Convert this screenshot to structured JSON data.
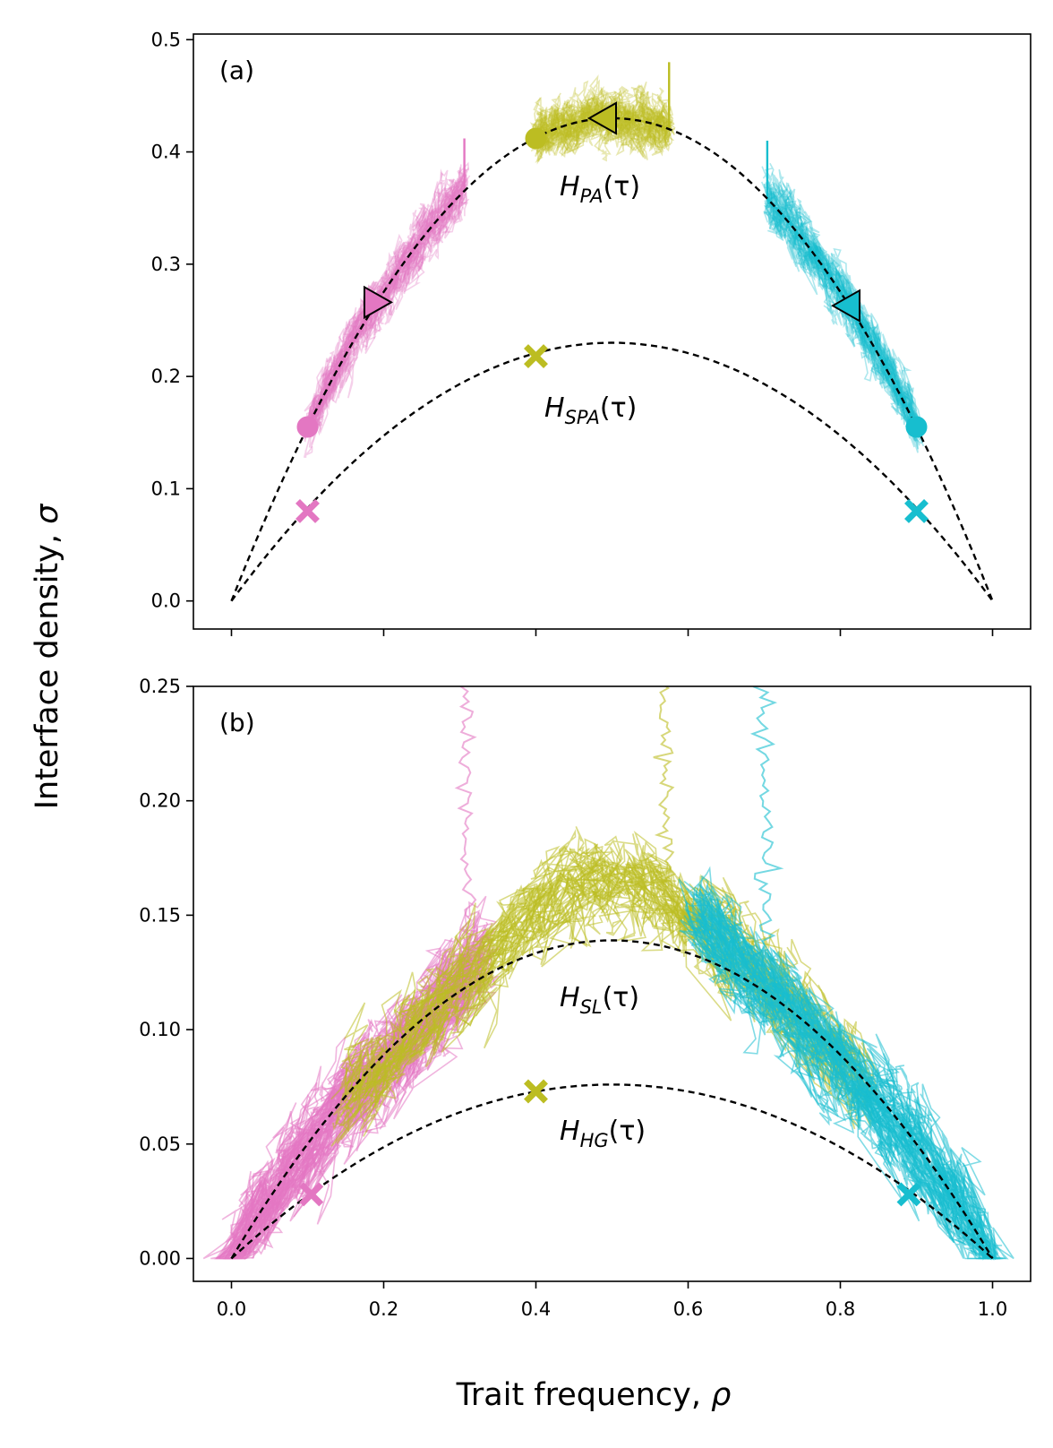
{
  "colors": {
    "pink": "#e377c2",
    "olive": "#bcbd22",
    "cyan": "#17becf",
    "black": "#000000"
  },
  "figure": {
    "xlabel_text": "Trait frequency, ",
    "xlabel_symbol": "ρ",
    "ylabel_text": "Interface density, ",
    "ylabel_symbol": "σ",
    "x_ticks": [
      "0.0",
      "0.2",
      "0.4",
      "0.6",
      "0.8",
      "1.0"
    ]
  },
  "chart_data": [
    {
      "type": "line",
      "panel_label": "(a)",
      "xlim": [
        -0.05,
        1.05
      ],
      "ylim": [
        -0.025,
        0.505
      ],
      "y_ticks": [
        0.0,
        0.1,
        0.2,
        0.3,
        0.4,
        0.5
      ],
      "y_tick_labels": [
        "0.0",
        "0.1",
        "0.2",
        "0.3",
        "0.4",
        "0.5"
      ],
      "theory_curves": [
        {
          "main": "H",
          "sub": "PA",
          "arg": "(τ)",
          "peak": 0.43,
          "style": "dashed"
        },
        {
          "main": "H",
          "sub": "SPA",
          "arg": "(τ)",
          "peak": 0.23,
          "style": "dashed"
        }
      ],
      "series": [
        {
          "name": "pink",
          "color_key": "pink",
          "rho_start": 0.1,
          "rho_end": 0.306,
          "spike_at": 0.306,
          "spike_top": 0.412
        },
        {
          "name": "olive",
          "color_key": "olive",
          "rho_start": 0.4,
          "rho_end": 0.575,
          "spike_at": 0.575,
          "spike_top": 0.48
        },
        {
          "name": "cyan",
          "color_key": "cyan",
          "rho_start": 0.9,
          "rho_end": 0.704,
          "spike_at": 0.704,
          "spike_top": 0.41
        }
      ],
      "markers": [
        {
          "shape": "circle",
          "color_key": "pink",
          "x": 0.1,
          "y": 0.155
        },
        {
          "shape": "circle",
          "color_key": "olive",
          "x": 0.4,
          "y": 0.412
        },
        {
          "shape": "circle",
          "color_key": "cyan",
          "x": 0.9,
          "y": 0.155
        },
        {
          "shape": "triangle-right",
          "color_key": "pink",
          "x": 0.19,
          "y": 0.266
        },
        {
          "shape": "triangle-left",
          "color_key": "olive",
          "x": 0.49,
          "y": 0.43
        },
        {
          "shape": "triangle-left",
          "color_key": "cyan",
          "x": 0.81,
          "y": 0.263
        },
        {
          "shape": "x",
          "color_key": "pink",
          "x": 0.1,
          "y": 0.08
        },
        {
          "shape": "x",
          "color_key": "olive",
          "x": 0.4,
          "y": 0.218
        },
        {
          "shape": "x",
          "color_key": "cyan",
          "x": 0.9,
          "y": 0.08
        }
      ]
    },
    {
      "type": "line",
      "panel_label": "(b)",
      "xlim": [
        -0.05,
        1.05
      ],
      "ylim": [
        -0.01,
        0.25
      ],
      "y_ticks": [
        0.0,
        0.05,
        0.1,
        0.15,
        0.2,
        0.25
      ],
      "y_tick_labels": [
        "0.00",
        "0.05",
        "0.10",
        "0.15",
        "0.20",
        "0.25"
      ],
      "theory_curves": [
        {
          "main": "H",
          "sub": "SL",
          "arg": "(τ)",
          "peak": 0.139,
          "style": "dashed"
        },
        {
          "main": "H",
          "sub": "HG",
          "arg": "(τ)",
          "peak": 0.076,
          "style": "dashed"
        }
      ],
      "series": [
        {
          "name": "pink",
          "color_key": "pink",
          "rho_start": 0.0,
          "rho_end": 0.33,
          "spike_at": 0.31,
          "spike_top": 0.25
        },
        {
          "name": "olive",
          "color_key": "olive",
          "rho_start": 0.15,
          "rho_end": 0.83,
          "spike_at": 0.57,
          "spike_top": 0.25
        },
        {
          "name": "cyan",
          "color_key": "cyan",
          "rho_start": 0.61,
          "rho_end": 1.0,
          "spike_at": 0.7,
          "spike_top": 0.25
        }
      ],
      "markers": [
        {
          "shape": "x",
          "color_key": "pink",
          "x": 0.105,
          "y": 0.028
        },
        {
          "shape": "x",
          "color_key": "olive",
          "x": 0.4,
          "y": 0.073
        },
        {
          "shape": "x",
          "color_key": "cyan",
          "x": 0.89,
          "y": 0.028
        }
      ]
    }
  ]
}
